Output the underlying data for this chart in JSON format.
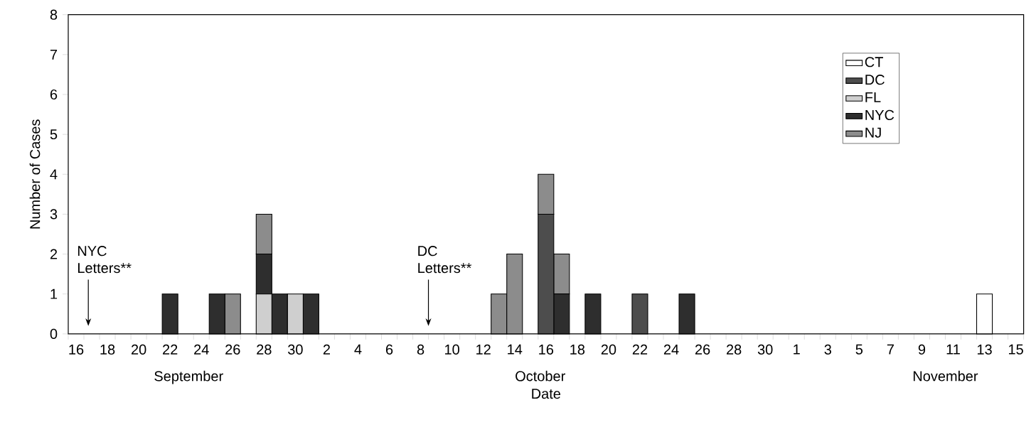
{
  "chart_data": {
    "type": "bar",
    "stacked": true,
    "xlabel": "Date",
    "ylabel": "Number of Cases",
    "categories": [
      "16",
      null,
      "18",
      null,
      "20",
      null,
      "22",
      null,
      "24",
      null,
      "26",
      null,
      "28",
      null,
      "30",
      null,
      "2",
      null,
      "4",
      null,
      "6",
      null,
      "8",
      null,
      "10",
      null,
      "12",
      null,
      "14",
      null,
      "16",
      null,
      "18",
      null,
      "20",
      null,
      "22",
      null,
      "24",
      null,
      "26",
      null,
      "28",
      null,
      "30",
      null,
      "1",
      null,
      "3",
      null,
      "5",
      null,
      "7",
      null,
      "9",
      null,
      "11",
      null,
      "13",
      null,
      "15"
    ],
    "series": [
      {
        "name": "CT",
        "color": "#ffffff",
        "values": [
          0,
          0,
          0,
          0,
          0,
          0,
          0,
          0,
          0,
          0,
          0,
          0,
          0,
          0,
          0,
          0,
          0,
          0,
          0,
          0,
          0,
          0,
          0,
          0,
          0,
          0,
          0,
          0,
          0,
          0,
          0,
          0,
          0,
          0,
          0,
          0,
          0,
          0,
          0,
          0,
          0,
          0,
          0,
          0,
          0,
          0,
          0,
          0,
          0,
          0,
          0,
          0,
          0,
          0,
          0,
          0,
          0,
          0,
          1,
          0,
          0
        ]
      },
      {
        "name": "DC",
        "color": "#4d4d4d",
        "values": [
          0,
          0,
          0,
          0,
          0,
          0,
          0,
          0,
          0,
          0,
          0,
          0,
          0,
          0,
          0,
          0,
          0,
          0,
          0,
          0,
          0,
          0,
          0,
          0,
          0,
          0,
          0,
          0,
          0,
          0,
          3,
          0,
          0,
          0,
          0,
          0,
          1,
          0,
          0,
          0,
          0,
          0,
          0,
          0,
          0,
          0,
          0,
          0,
          0,
          0,
          0,
          0,
          0,
          0,
          0,
          0,
          0,
          0,
          0,
          0,
          0
        ]
      },
      {
        "name": "FL",
        "color": "#cfcfcf",
        "values": [
          0,
          0,
          0,
          0,
          0,
          0,
          0,
          0,
          0,
          0,
          0,
          0,
          1,
          0,
          1,
          0,
          0,
          0,
          0,
          0,
          0,
          0,
          0,
          0,
          0,
          0,
          0,
          0,
          0,
          0,
          0,
          0,
          0,
          0,
          0,
          0,
          0,
          0,
          0,
          0,
          0,
          0,
          0,
          0,
          0,
          0,
          0,
          0,
          0,
          0,
          0,
          0,
          0,
          0,
          0,
          0,
          0,
          0,
          0,
          0,
          0
        ]
      },
      {
        "name": "NYC",
        "color": "#2e2e2e",
        "values": [
          0,
          0,
          0,
          0,
          0,
          0,
          1,
          0,
          0,
          1,
          0,
          0,
          1,
          1,
          0,
          1,
          0,
          0,
          0,
          0,
          0,
          0,
          0,
          0,
          0,
          0,
          0,
          0,
          0,
          0,
          0,
          1,
          0,
          1,
          0,
          0,
          0,
          0,
          0,
          1,
          0,
          0,
          0,
          0,
          0,
          0,
          0,
          0,
          0,
          0,
          0,
          0,
          0,
          0,
          0,
          0,
          0,
          0,
          0,
          0,
          0
        ]
      },
      {
        "name": "NJ",
        "color": "#8c8c8c",
        "values": [
          0,
          0,
          0,
          0,
          0,
          0,
          0,
          0,
          0,
          0,
          1,
          0,
          1,
          0,
          0,
          0,
          0,
          0,
          0,
          0,
          0,
          0,
          0,
          0,
          0,
          0,
          0,
          1,
          2,
          0,
          1,
          1,
          0,
          0,
          0,
          0,
          0,
          0,
          0,
          0,
          0,
          0,
          0,
          0,
          0,
          0,
          0,
          0,
          0,
          0,
          0,
          0,
          0,
          0,
          0,
          0,
          0,
          0,
          0,
          0,
          0
        ]
      }
    ],
    "ylim": [
      0,
      8
    ],
    "yticks": [
      0,
      1,
      2,
      3,
      4,
      5,
      6,
      7,
      8
    ],
    "legend": "top right",
    "grid": false,
    "annotations": [
      "NYC Letters**",
      "DC Letters**",
      "September",
      "October",
      "November"
    ]
  }
}
